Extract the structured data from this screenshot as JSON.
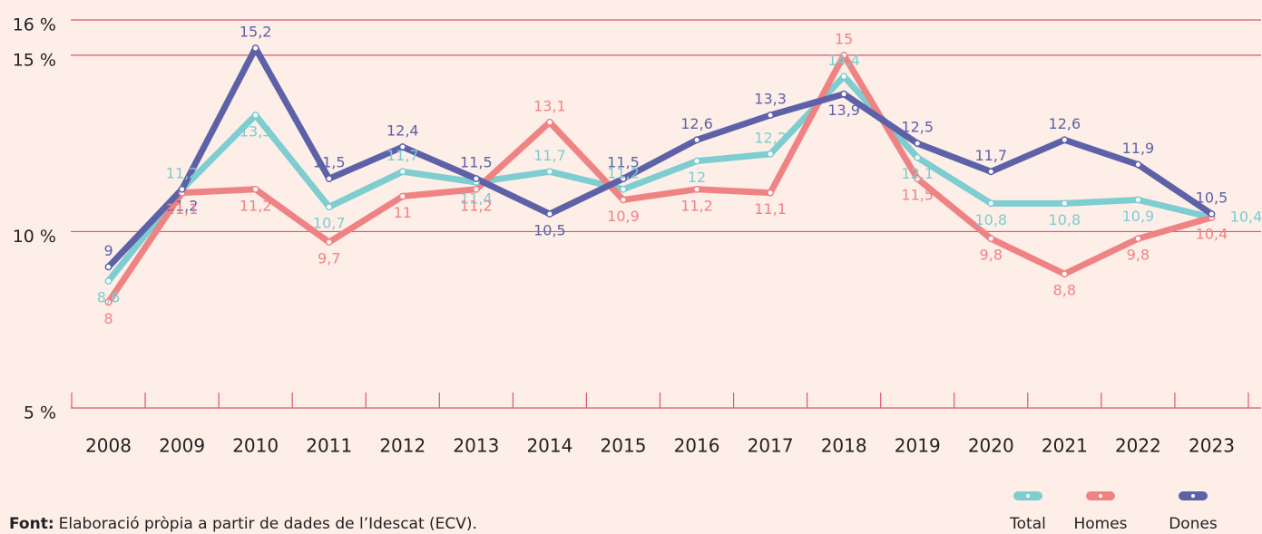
{
  "chart_data": {
    "type": "line",
    "categories": [
      "2008",
      "2009",
      "2010",
      "2011",
      "2012",
      "2013",
      "2014",
      "2015",
      "2016",
      "2017",
      "2018",
      "2019",
      "2020",
      "2021",
      "2022",
      "2023"
    ],
    "series": [
      {
        "name": "Total",
        "color": "#7dcdd1",
        "values": [
          8.6,
          11.2,
          13.3,
          10.7,
          11.7,
          11.4,
          11.7,
          11.2,
          12,
          12.2,
          14.4,
          12.1,
          10.8,
          10.8,
          10.9,
          10.4
        ],
        "value_labels": [
          "8,6",
          "11,2",
          "13,3",
          "10,7",
          "11,7",
          "11,4",
          "11,7",
          "11,2",
          "12",
          "12,2",
          "14,4",
          "12,1",
          "10,8",
          "10,8",
          "10,9",
          "10,4"
        ]
      },
      {
        "name": "Homes",
        "color": "#ef8384",
        "values": [
          8,
          11.1,
          11.2,
          9.7,
          11,
          11.2,
          13.1,
          10.9,
          11.2,
          11.1,
          15,
          11.5,
          9.8,
          8.8,
          9.8,
          10.4
        ],
        "value_labels": [
          "8",
          "11,1",
          "11,2",
          "9,7",
          "11",
          "11,2",
          "13,1",
          "10,9",
          "11,2",
          "11,1",
          "15",
          "11,5",
          "9,8",
          "8,8",
          "9,8",
          "10,4"
        ]
      },
      {
        "name": "Dones",
        "color": "#5d62a8",
        "values": [
          9,
          11.2,
          15.2,
          11.5,
          12.4,
          11.5,
          10.5,
          11.5,
          12.6,
          13.3,
          13.9,
          12.5,
          11.7,
          12.6,
          11.9,
          10.5
        ],
        "value_labels": [
          "9",
          "11,2",
          "15,2",
          "11,5",
          "12,4",
          "11,5",
          "10,5",
          "11,5",
          "12,6",
          "13,3",
          "13,9",
          "12,5",
          "11,7",
          "12,6",
          "11,9",
          "10,5"
        ]
      }
    ],
    "ylim": [
      5,
      16
    ],
    "yticks": [
      {
        "value": 16,
        "label": "16 %"
      },
      {
        "value": 15,
        "label": "15 %"
      },
      {
        "value": 10,
        "label": "10 %"
      },
      {
        "value": 5,
        "label": "5 %"
      }
    ],
    "grid": true,
    "legend": "bottom-right",
    "source_label": "Font:",
    "source": "Elaboració pròpia a partir de dades de l’Idescat (ECV)."
  }
}
